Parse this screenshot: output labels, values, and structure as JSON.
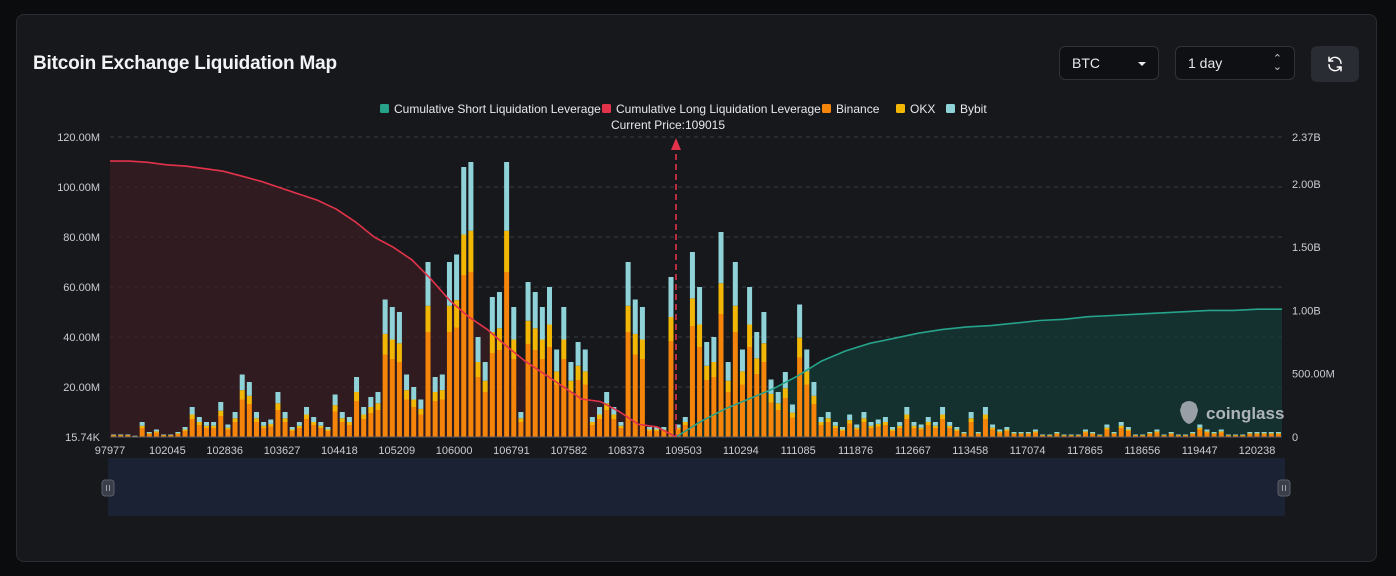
{
  "header": {
    "title": "Bitcoin Exchange Liquidation Map",
    "coin_select": "BTC",
    "range_select": "1 day",
    "refresh_icon": "refresh-icon"
  },
  "legend": [
    {
      "label": "Cumulative Short Liquidation Leverage",
      "color": "#26a38a"
    },
    {
      "label": "Cumulative Long Liquidation Leverage",
      "color": "#e2334a"
    },
    {
      "label": "Binance",
      "color": "#f5840b"
    },
    {
      "label": "OKX",
      "color": "#f2b705"
    },
    {
      "label": "Bybit",
      "color": "#8fd3d9"
    }
  ],
  "current_price_label": "Current Price:109015",
  "watermark": "coinglass",
  "chart_data": {
    "type": "bar",
    "title": "Bitcoin Exchange Liquidation Map",
    "current_price": 109015,
    "x_tick_labels": [
      "97977",
      "102045",
      "102836",
      "103627",
      "104418",
      "105209",
      "106000",
      "106791",
      "107582",
      "108373",
      "109503",
      "110294",
      "111085",
      "111876",
      "112667",
      "113458",
      "117074",
      "117865",
      "118656",
      "119447",
      "120238"
    ],
    "y_left": {
      "ticks": [
        "15.74K",
        "20.00M",
        "40.00M",
        "60.00M",
        "80.00M",
        "100.00M",
        "120.00M"
      ],
      "range": [
        0,
        120
      ]
    },
    "y_right": {
      "ticks": [
        "0",
        "500.00M",
        "1.00B",
        "1.50B",
        "2.00B",
        "2.37B"
      ],
      "range": [
        0,
        2.37
      ]
    },
    "bar_totals_m": [
      1,
      1,
      1,
      0.5,
      6,
      2,
      3,
      1,
      1,
      2,
      4,
      12,
      8,
      6,
      6,
      14,
      5,
      10,
      25,
      22,
      10,
      6,
      7,
      18,
      10,
      4,
      6,
      12,
      8,
      6,
      4,
      17,
      10,
      8,
      24,
      12,
      16,
      18,
      55,
      52,
      50,
      25,
      20,
      15,
      70,
      24,
      25,
      70,
      73,
      108,
      110,
      40,
      30,
      56,
      58,
      110,
      52,
      10,
      62,
      58,
      52,
      60,
      35,
      52,
      30,
      38,
      35,
      8,
      12,
      18,
      12,
      6,
      70,
      55,
      52,
      4,
      4,
      4,
      64,
      5,
      8,
      74,
      60,
      38,
      40,
      82,
      30,
      70,
      35,
      60,
      42,
      50,
      23,
      18,
      26,
      13,
      53,
      35,
      22,
      8,
      10,
      6,
      4,
      9,
      5,
      10,
      6,
      7,
      8,
      4,
      6,
      12,
      6,
      5,
      8,
      6,
      12,
      6,
      4,
      2,
      10,
      2,
      12,
      5,
      3,
      4,
      2,
      2,
      2,
      3,
      1,
      1,
      2,
      1,
      1,
      1,
      3,
      2,
      1,
      5,
      2,
      6,
      4,
      1,
      1,
      2,
      3,
      1,
      2,
      1,
      1,
      2,
      5,
      3,
      2,
      3,
      1,
      1,
      1,
      2,
      2,
      2,
      2,
      2
    ],
    "long_cumulative_b": [
      2.18,
      2.18,
      2.17,
      2.15,
      2.14,
      2.12,
      2.1,
      2.06,
      2.02,
      1.97,
      1.92,
      1.87,
      1.8,
      1.7,
      1.58,
      1.5,
      1.4,
      1.25,
      1.08,
      0.95,
      0.85,
      0.72,
      0.6,
      0.5,
      0.4,
      0.3,
      0.28,
      0.2,
      0.1,
      0.08,
      0.0
    ],
    "short_cumulative_b": [
      0.0,
      0.12,
      0.22,
      0.3,
      0.38,
      0.48,
      0.6,
      0.68,
      0.74,
      0.78,
      0.82,
      0.85,
      0.87,
      0.88,
      0.9,
      0.92,
      0.93,
      0.95,
      0.96,
      0.97,
      0.98,
      0.99,
      1.0,
      1.0,
      1.01,
      1.01
    ],
    "series_share": [
      {
        "name": "Binance",
        "share": 0.6
      },
      {
        "name": "OKX",
        "share": 0.15
      },
      {
        "name": "Bybit",
        "share": 0.25
      }
    ]
  }
}
